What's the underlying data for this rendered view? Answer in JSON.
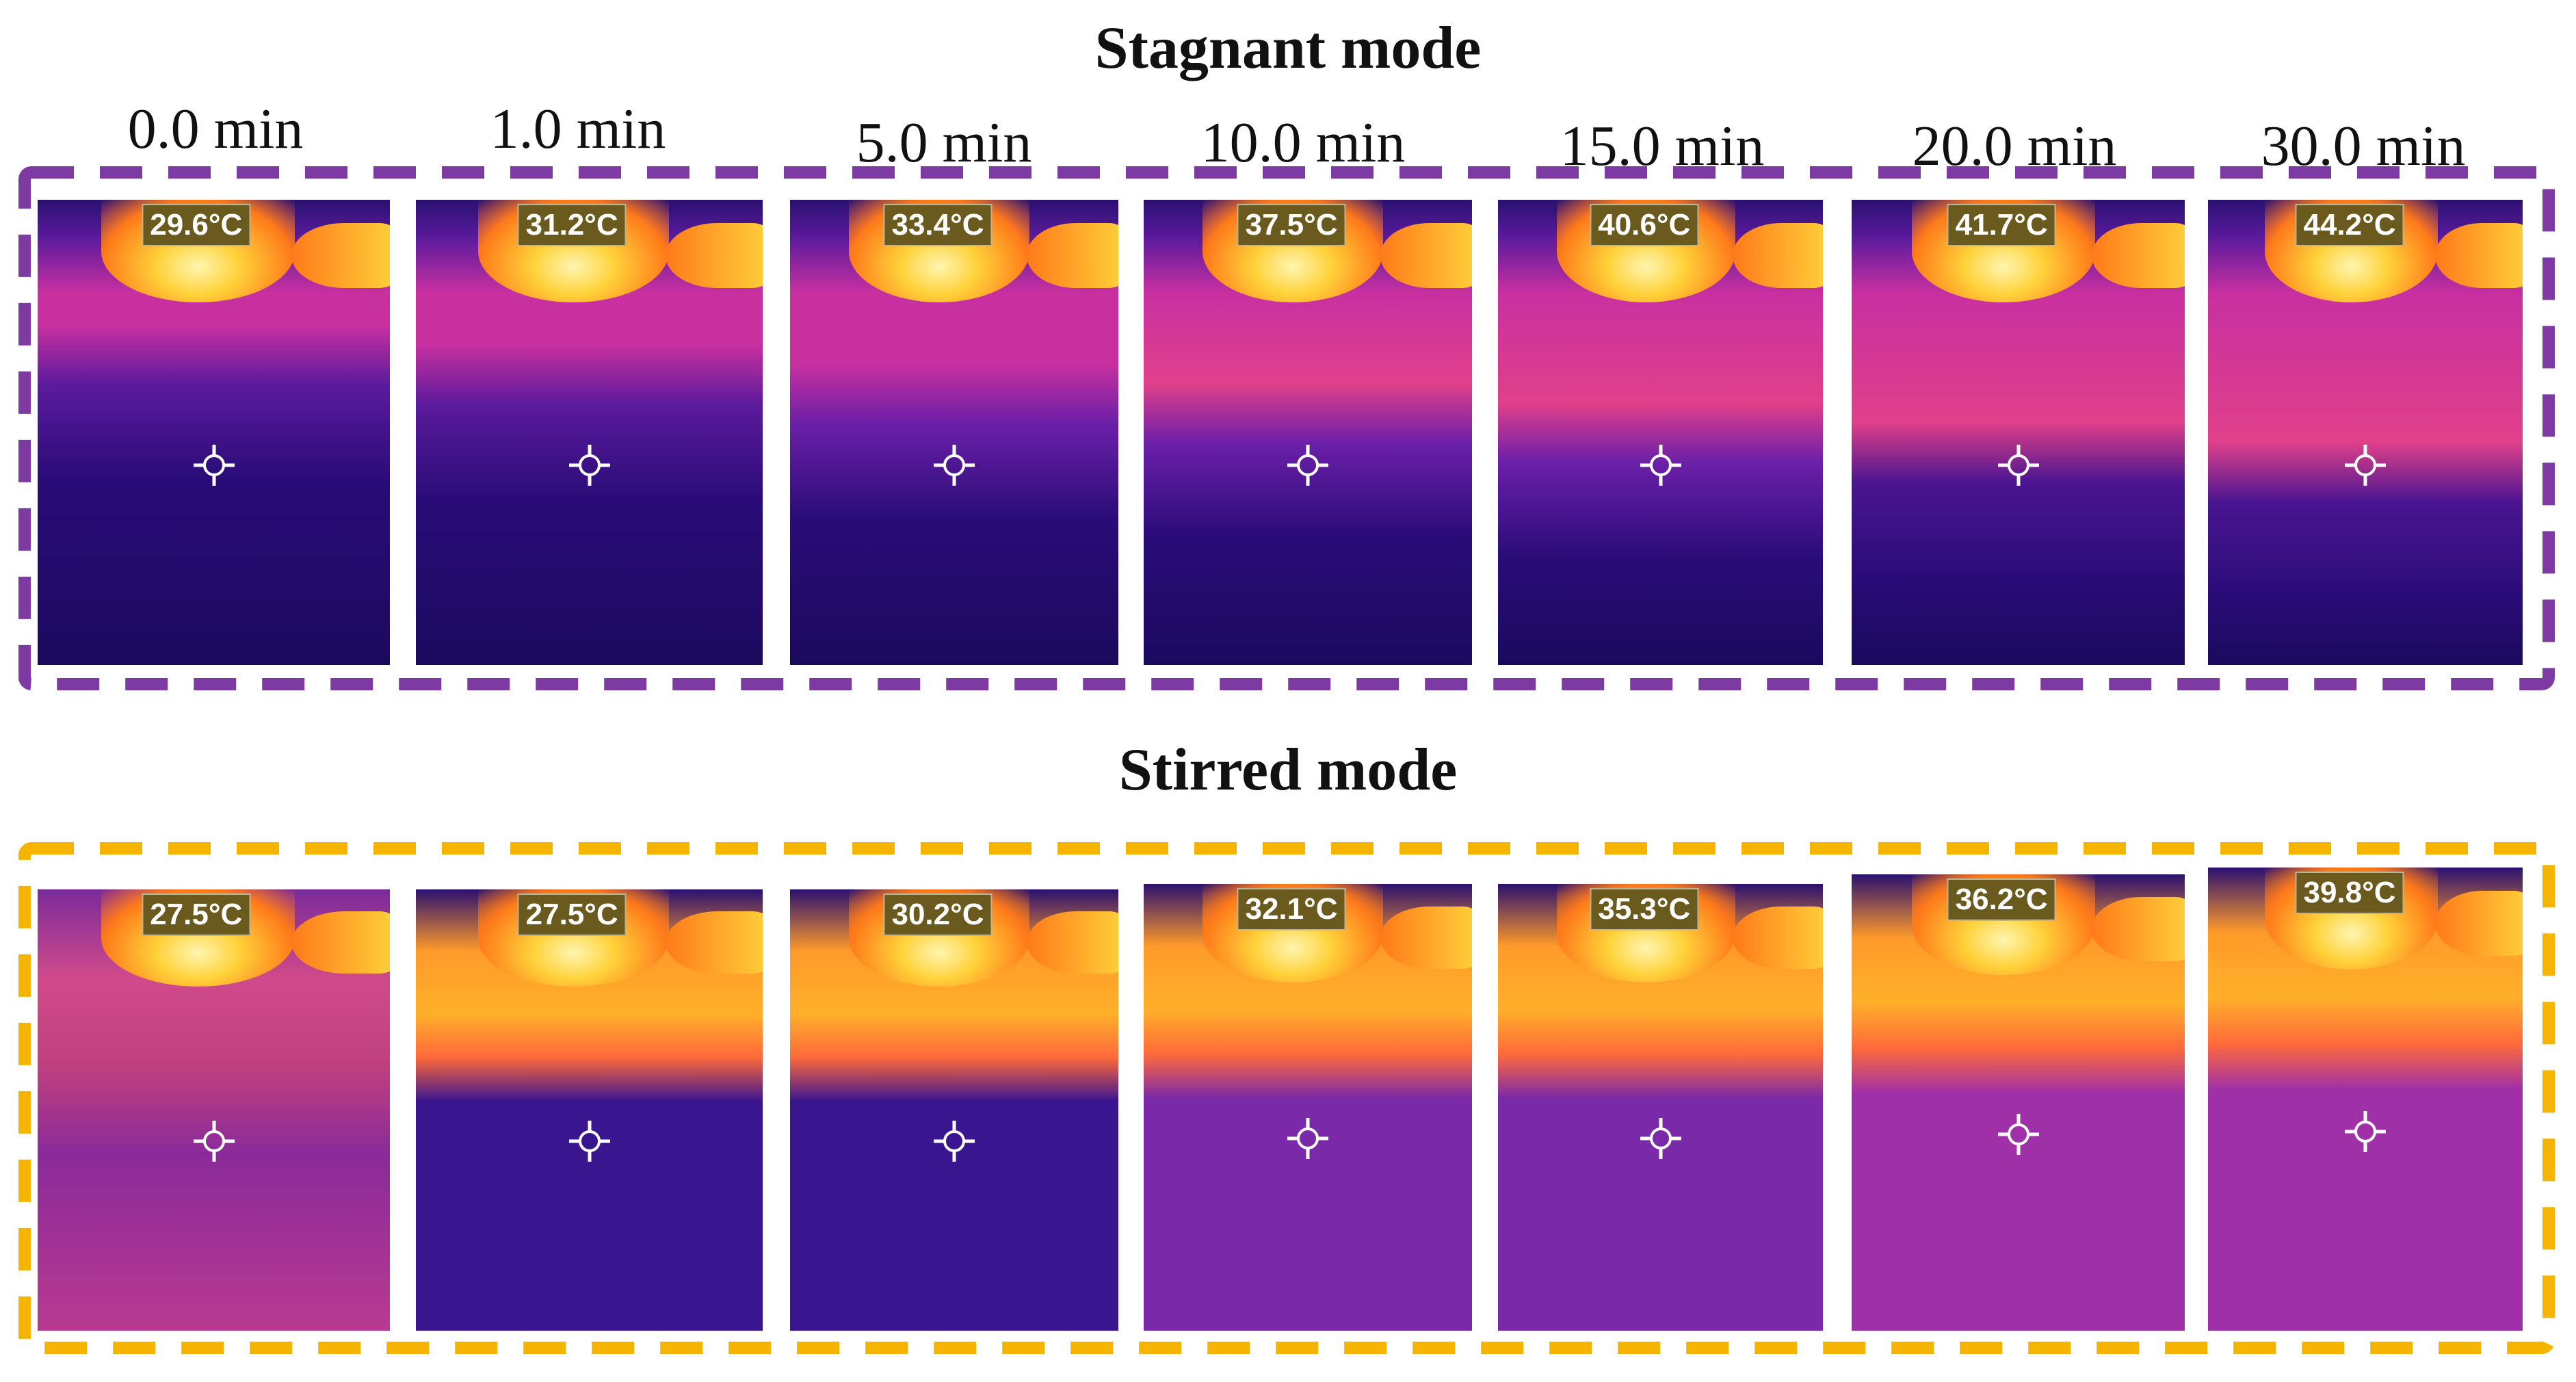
{
  "title_stagnant": "Stagnant mode",
  "title_stirred": "Stirred mode",
  "time_labels": [
    "0.0 min",
    "1.0 min",
    "5.0 min",
    "10.0 min",
    "15.0 min",
    "20.0 min",
    "30.0 min"
  ],
  "stagnant": {
    "frame_color": "#7e3aa3",
    "temperatures": [
      "29.6°C",
      "31.2°C",
      "33.4°C",
      "37.5°C",
      "40.6°C",
      "41.7°C",
      "44.2°C"
    ]
  },
  "stirred": {
    "frame_color": "#f5b400",
    "temperatures": [
      "27.5°C",
      "27.5°C",
      "30.2°C",
      "32.1°C",
      "35.3°C",
      "36.2°C",
      "39.8°C"
    ]
  },
  "colors": {
    "badge_bg": "#6b5a1e",
    "thermal_dark": "#1a0a5e",
    "thermal_purple": "#5a1a9c",
    "thermal_magenta": "#c830a0",
    "thermal_orange": "#ff7a1a",
    "thermal_yellow": "#ffd23a"
  }
}
